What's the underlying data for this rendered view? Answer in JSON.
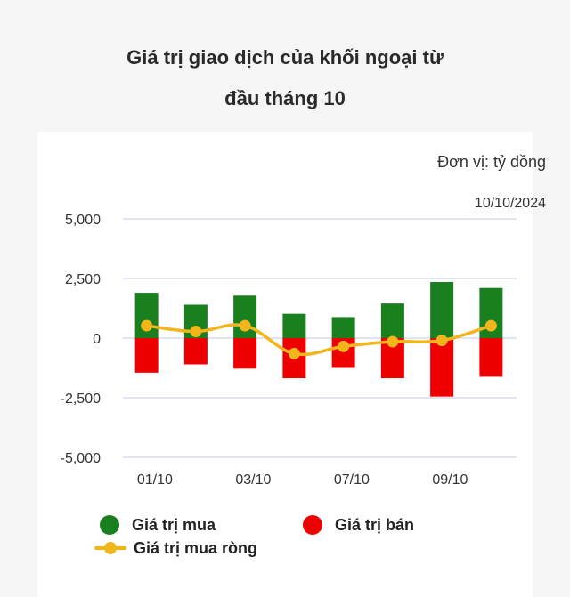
{
  "title_line1": "Giá trị giao dịch của khối ngoại từ",
  "title_line2": "đầu tháng 10",
  "unit_label": "Đơn vị: tỷ đồng",
  "date_label": "10/10/2024",
  "colors": {
    "buy": "#1a7f1e",
    "sell": "#ee0000",
    "net": "#f2b51c",
    "grid": "#d9dcf0",
    "axis_text": "#333333"
  },
  "legend": {
    "buy_label": "Giá trị mua",
    "sell_label": "Giá trị bán",
    "net_label": "Giá trị mua ròng"
  },
  "chart_data": {
    "type": "bar",
    "title": "Giá trị giao dịch của khối ngoại từ đầu tháng 10",
    "xlabel": "",
    "ylabel": "",
    "unit": "tỷ đồng",
    "ylim": [
      -5000,
      5000
    ],
    "yticks": [
      5000,
      2500,
      0,
      -2500,
      -5000
    ],
    "ytick_labels": [
      "5,000",
      "2,500",
      "0",
      "-2,500",
      "-5,000"
    ],
    "x_tick_labels": [
      "01/10",
      "03/10",
      "07/10",
      "09/10"
    ],
    "x_tick_positions": [
      0.5,
      2.5,
      4.5,
      6.5
    ],
    "sessions": 8,
    "grid": true,
    "legend_position": "bottom",
    "series": [
      {
        "name": "Giá trị mua",
        "type": "bar",
        "values": [
          1900,
          1400,
          1780,
          1020,
          880,
          1450,
          2350,
          2100
        ]
      },
      {
        "name": "Giá trị bán",
        "type": "bar",
        "values": [
          -1450,
          -1100,
          -1280,
          -1680,
          -1250,
          -1680,
          -2450,
          -1620
        ]
      },
      {
        "name": "Giá trị mua ròng",
        "type": "line",
        "values": [
          520,
          280,
          520,
          -650,
          -350,
          -150,
          -100,
          520
        ]
      }
    ]
  }
}
